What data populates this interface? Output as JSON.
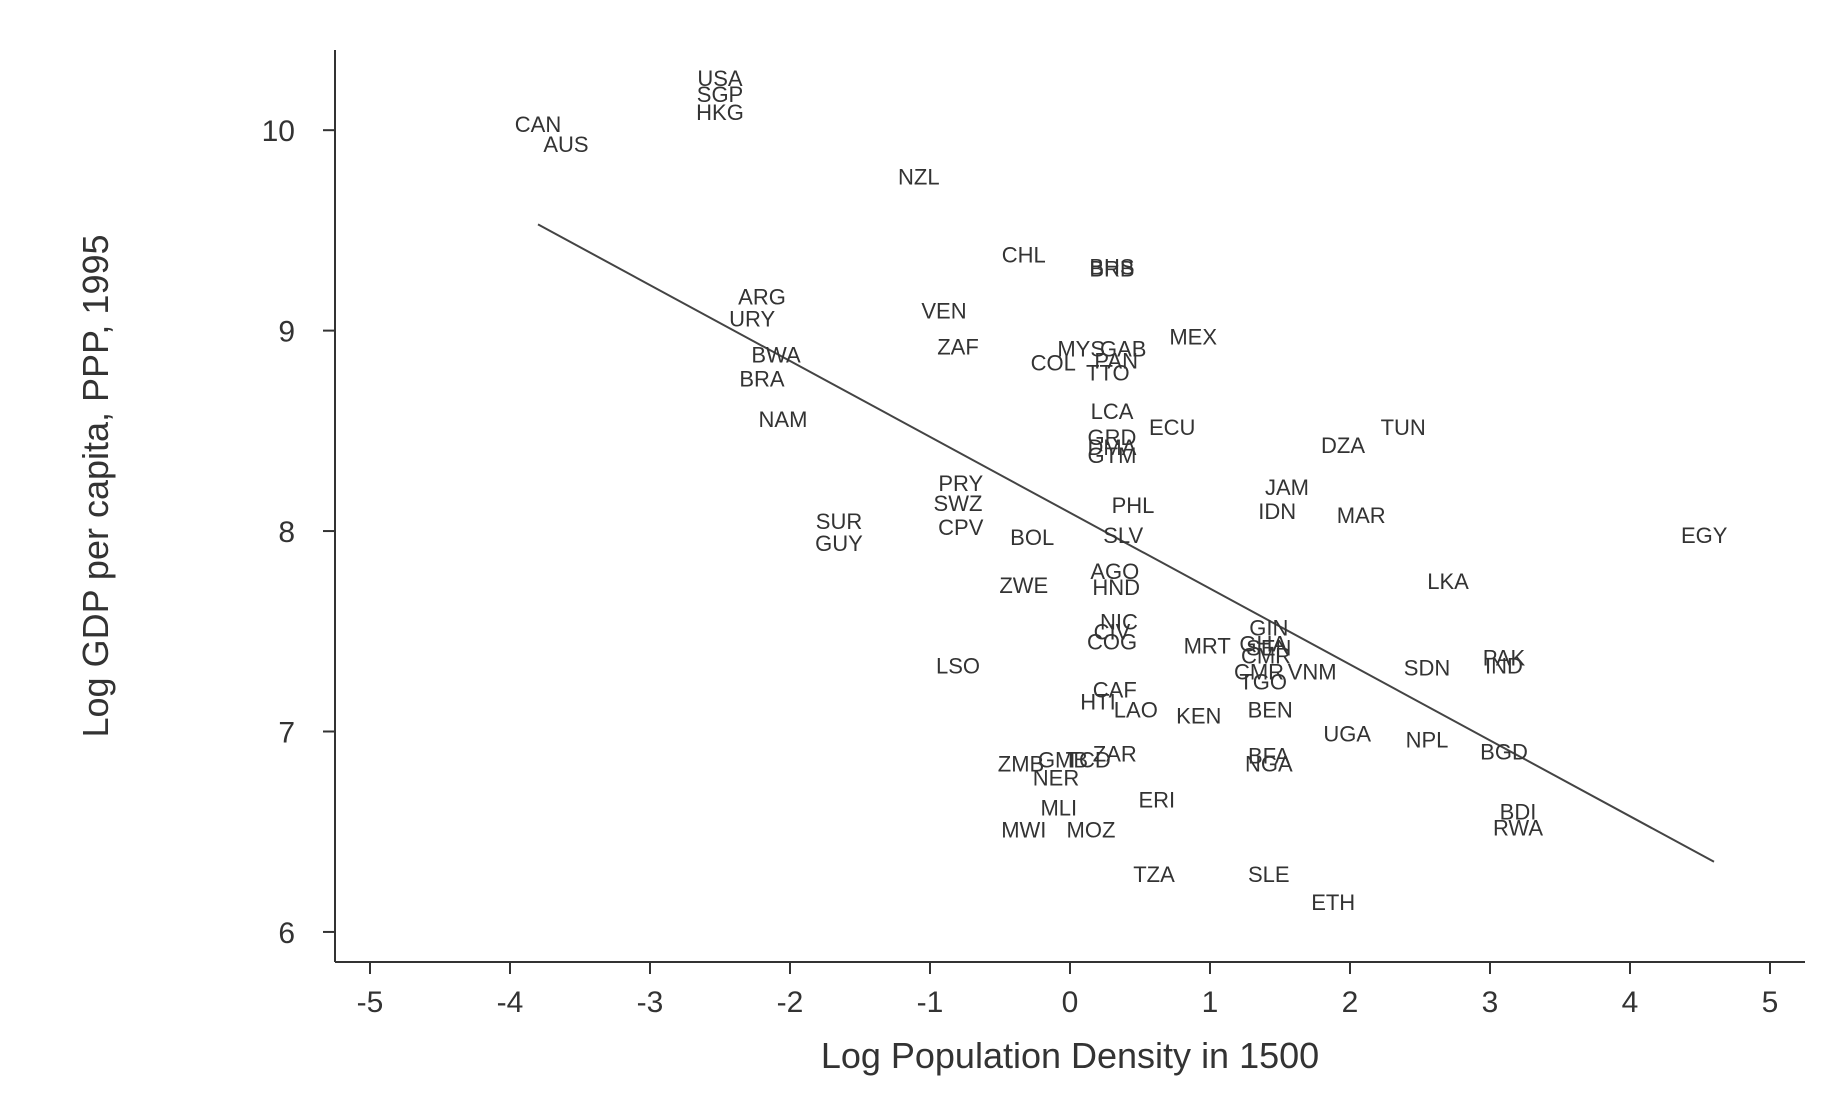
{
  "chart_data": {
    "type": "scatter",
    "title": "",
    "xlabel": "Log Population Density in 1500",
    "ylabel": "Log GDP per capita, PPP, 1995",
    "xlim": [
      -5.25,
      5.25
    ],
    "ylim": [
      5.85,
      10.4
    ],
    "xticks": [
      -5,
      -4,
      -3,
      -2,
      -1,
      0,
      1,
      2,
      3,
      4,
      5
    ],
    "yticks": [
      6,
      7,
      8,
      9,
      10
    ],
    "grid": false,
    "legend": "none",
    "fit_line": {
      "x": [
        -3.8,
        4.6
      ],
      "y": [
        9.53,
        6.35
      ]
    },
    "points": [
      {
        "label": "USA",
        "x": -2.5,
        "y": 10.26
      },
      {
        "label": "SGP",
        "x": -2.5,
        "y": 10.18
      },
      {
        "label": "HKG",
        "x": -2.5,
        "y": 10.09
      },
      {
        "label": "CAN",
        "x": -3.8,
        "y": 10.03
      },
      {
        "label": "AUS",
        "x": -3.6,
        "y": 9.93
      },
      {
        "label": "NZL",
        "x": -1.08,
        "y": 9.77
      },
      {
        "label": "CHL",
        "x": -0.33,
        "y": 9.38
      },
      {
        "label": "BHS",
        "x": 0.3,
        "y": 9.32
      },
      {
        "label": "BRB",
        "x": 0.3,
        "y": 9.31
      },
      {
        "label": "ARG",
        "x": -2.2,
        "y": 9.17
      },
      {
        "label": "URY",
        "x": -2.27,
        "y": 9.06
      },
      {
        "label": "VEN",
        "x": -0.9,
        "y": 9.1
      },
      {
        "label": "MEX",
        "x": 0.88,
        "y": 8.97
      },
      {
        "label": "ZAF",
        "x": -0.8,
        "y": 8.92
      },
      {
        "label": "MYS",
        "x": 0.08,
        "y": 8.91
      },
      {
        "label": "GAB",
        "x": 0.38,
        "y": 8.91
      },
      {
        "label": "PAN",
        "x": 0.33,
        "y": 8.85
      },
      {
        "label": "COL",
        "x": -0.12,
        "y": 8.84
      },
      {
        "label": "TTO",
        "x": 0.27,
        "y": 8.79
      },
      {
        "label": "BWA",
        "x": -2.1,
        "y": 8.88
      },
      {
        "label": "BRA",
        "x": -2.2,
        "y": 8.76
      },
      {
        "label": "LCA",
        "x": 0.3,
        "y": 8.6
      },
      {
        "label": "NAM",
        "x": -2.05,
        "y": 8.56
      },
      {
        "label": "ECU",
        "x": 0.73,
        "y": 8.52
      },
      {
        "label": "TUN",
        "x": 2.38,
        "y": 8.52
      },
      {
        "label": "DZA",
        "x": 1.95,
        "y": 8.43
      },
      {
        "label": "GRD",
        "x": 0.3,
        "y": 8.47
      },
      {
        "label": "DMA",
        "x": 0.3,
        "y": 8.42
      },
      {
        "label": "GTM",
        "x": 0.3,
        "y": 8.38
      },
      {
        "label": "PRY",
        "x": -0.78,
        "y": 8.24
      },
      {
        "label": "JAM",
        "x": 1.55,
        "y": 8.22
      },
      {
        "label": "SWZ",
        "x": -0.8,
        "y": 8.14
      },
      {
        "label": "PHL",
        "x": 0.45,
        "y": 8.13
      },
      {
        "label": "IDN",
        "x": 1.48,
        "y": 8.1
      },
      {
        "label": "MAR",
        "x": 2.08,
        "y": 8.08
      },
      {
        "label": "SUR",
        "x": -1.65,
        "y": 8.05
      },
      {
        "label": "CPV",
        "x": -0.78,
        "y": 8.02
      },
      {
        "label": "EGY",
        "x": 4.53,
        "y": 7.98
      },
      {
        "label": "BOL",
        "x": -0.27,
        "y": 7.97
      },
      {
        "label": "SLV",
        "x": 0.38,
        "y": 7.98
      },
      {
        "label": "GUY",
        "x": -1.65,
        "y": 7.94
      },
      {
        "label": "AGO",
        "x": 0.32,
        "y": 7.8
      },
      {
        "label": "LKA",
        "x": 2.7,
        "y": 7.75
      },
      {
        "label": "ZWE",
        "x": -0.33,
        "y": 7.73
      },
      {
        "label": "HND",
        "x": 0.33,
        "y": 7.72
      },
      {
        "label": "NIC",
        "x": 0.35,
        "y": 7.55
      },
      {
        "label": "CIV",
        "x": 0.3,
        "y": 7.5
      },
      {
        "label": "GIN",
        "x": 1.42,
        "y": 7.52
      },
      {
        "label": "GHA",
        "x": 1.38,
        "y": 7.44
      },
      {
        "label": "COG",
        "x": 0.3,
        "y": 7.45
      },
      {
        "label": "MRT",
        "x": 0.98,
        "y": 7.43
      },
      {
        "label": "SEN",
        "x": 1.42,
        "y": 7.42
      },
      {
        "label": "CMR",
        "x": 1.4,
        "y": 7.38
      },
      {
        "label": "PAK",
        "x": 3.1,
        "y": 7.37
      },
      {
        "label": "IND",
        "x": 3.1,
        "y": 7.33
      },
      {
        "label": "LSO",
        "x": -0.8,
        "y": 7.33
      },
      {
        "label": "SDN",
        "x": 2.55,
        "y": 7.32
      },
      {
        "label": "CMR",
        "x": 1.35,
        "y": 7.3
      },
      {
        "label": "VNM",
        "x": 1.73,
        "y": 7.3
      },
      {
        "label": "TGO",
        "x": 1.38,
        "y": 7.25
      },
      {
        "label": "CAF",
        "x": 0.32,
        "y": 7.21
      },
      {
        "label": "HTI",
        "x": 0.2,
        "y": 7.15
      },
      {
        "label": "LAO",
        "x": 0.47,
        "y": 7.11
      },
      {
        "label": "BEN",
        "x": 1.43,
        "y": 7.11
      },
      {
        "label": "KEN",
        "x": 0.92,
        "y": 7.08
      },
      {
        "label": "UGA",
        "x": 1.98,
        "y": 6.99
      },
      {
        "label": "NPL",
        "x": 2.55,
        "y": 6.96
      },
      {
        "label": "BGD",
        "x": 3.1,
        "y": 6.9
      },
      {
        "label": "ZAR",
        "x": 0.32,
        "y": 6.89
      },
      {
        "label": "BFA",
        "x": 1.42,
        "y": 6.88
      },
      {
        "label": "ZMB",
        "x": -0.35,
        "y": 6.84
      },
      {
        "label": "GMB",
        "x": -0.05,
        "y": 6.86
      },
      {
        "label": "TCD",
        "x": 0.13,
        "y": 6.86
      },
      {
        "label": "NGA",
        "x": 1.42,
        "y": 6.84
      },
      {
        "label": "NER",
        "x": -0.1,
        "y": 6.77
      },
      {
        "label": "ERI",
        "x": 0.62,
        "y": 6.66
      },
      {
        "label": "MLI",
        "x": -0.08,
        "y": 6.62
      },
      {
        "label": "BDI",
        "x": 3.2,
        "y": 6.6
      },
      {
        "label": "RWA",
        "x": 3.2,
        "y": 6.52
      },
      {
        "label": "MWI",
        "x": -0.33,
        "y": 6.51
      },
      {
        "label": "MOZ",
        "x": 0.15,
        "y": 6.51
      },
      {
        "label": "TZA",
        "x": 0.6,
        "y": 6.29
      },
      {
        "label": "SLE",
        "x": 1.42,
        "y": 6.29
      },
      {
        "label": "ETH",
        "x": 1.88,
        "y": 6.15
      }
    ]
  }
}
